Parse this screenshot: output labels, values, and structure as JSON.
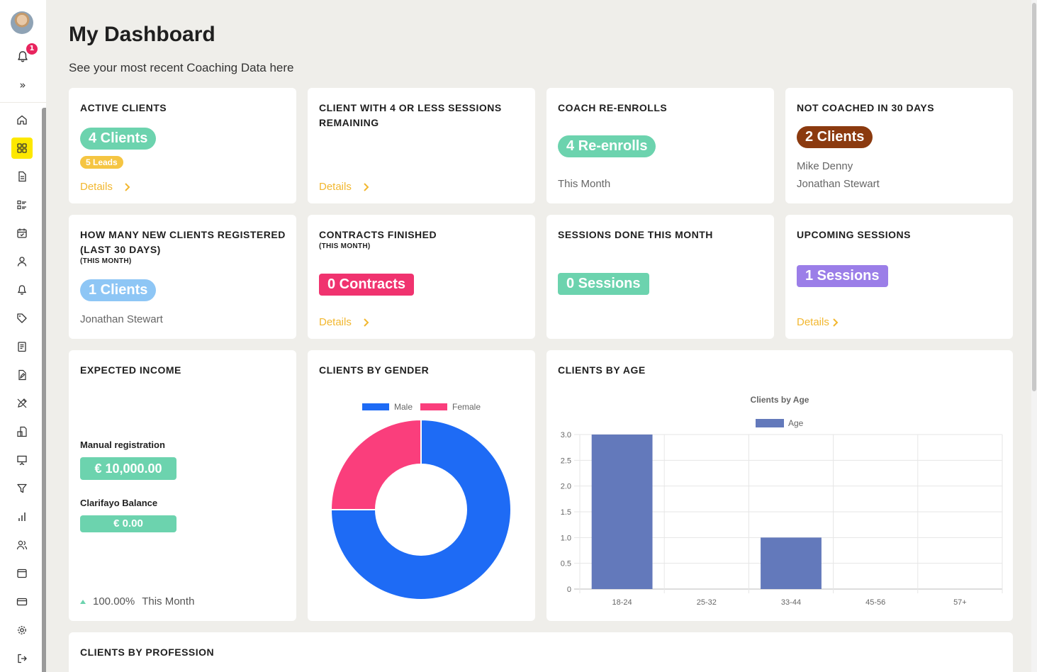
{
  "sidebar": {
    "notification_count": "1",
    "expand_symbol": "»",
    "nav_icons": [
      "home-icon",
      "dashboard-icon",
      "document-icon",
      "list-icon",
      "calendar-icon",
      "user-icon",
      "bell-icon",
      "tag-icon",
      "notes-icon",
      "file-edit-icon",
      "pencil-icon",
      "clipboard-icon",
      "presentation-icon",
      "filter-icon",
      "bar-chart-icon",
      "users-icon",
      "window-icon",
      "credit-card-icon",
      "gear-icon",
      "logout-icon"
    ],
    "active_icon": "dashboard-icon"
  },
  "header": {
    "title": "My Dashboard",
    "subtitle": "See your most recent Coaching Data here"
  },
  "cards": {
    "active_clients": {
      "title": "ACTIVE CLIENTS",
      "value": "4 Clients",
      "leads": "5 Leads",
      "details": "Details"
    },
    "low_sessions": {
      "title": "CLIENT WITH 4 OR LESS SESSIONS REMAINING",
      "details": "Details"
    },
    "re_enrolls": {
      "title": "COACH RE-ENROLLS",
      "value": "4 Re-enrolls",
      "period": "This Month"
    },
    "not_coached": {
      "title": "NOT COACHED IN 30 DAYS",
      "value": "2 Clients",
      "names": [
        "Mike Denny",
        "Jonathan Stewart"
      ]
    },
    "new_clients": {
      "title": "HOW MANY NEW CLIENTS REGISTERED (LAST 30 DAYS)",
      "subtitle": "(THIS MONTH)",
      "value": "1 Clients",
      "names": [
        "Jonathan Stewart"
      ]
    },
    "contracts": {
      "title": "CONTRACTS FINISHED",
      "subtitle": "(THIS MONTH)",
      "value": "0 Contracts",
      "details": "Details"
    },
    "sessions_done": {
      "title": "SESSIONS DONE THIS MONTH",
      "value": "0 Sessions"
    },
    "upcoming": {
      "title": "UPCOMING SESSIONS",
      "value": "1 Sessions",
      "details": "Details"
    },
    "income": {
      "title": "EXPECTED INCOME",
      "manual_label": "Manual registration",
      "manual_value": "€ 10,000.00",
      "balance_label": "Clarifayo Balance",
      "balance_value": "€ 0.00",
      "trend_value": "100.00%",
      "trend_period": "This Month"
    },
    "gender": {
      "title": "CLIENTS BY GENDER"
    },
    "age": {
      "title": "CLIENTS BY AGE"
    },
    "profession": {
      "title": "CLIENTS BY PROFESSION"
    }
  },
  "colors": {
    "teal": "#6cd3ae",
    "yellow": "#f5c542",
    "brown": "#8b3a0f",
    "light_blue": "#8ec6f5",
    "pink": "#f0336f",
    "purple": "#9b7ee8",
    "male": "#1e6bf5",
    "female": "#fa3e7c",
    "age_bar": "#6379bb"
  },
  "chart_data": [
    {
      "type": "pie",
      "categories": [
        "Male",
        "Female"
      ],
      "values": [
        3,
        1
      ],
      "legend_position": "top",
      "donut": true
    },
    {
      "type": "bar",
      "title": "Clients by Age",
      "categories": [
        "18-24",
        "25-32",
        "33-44",
        "45-56",
        "57+"
      ],
      "series": [
        {
          "name": "Age",
          "values": [
            3,
            0,
            1,
            0,
            0
          ]
        }
      ],
      "ylim": [
        0,
        3
      ],
      "yticks": [
        "0",
        "0.5",
        "1.0",
        "1.5",
        "2.0",
        "2.5",
        "3.0"
      ],
      "grid": true,
      "legend_position": "top"
    }
  ]
}
